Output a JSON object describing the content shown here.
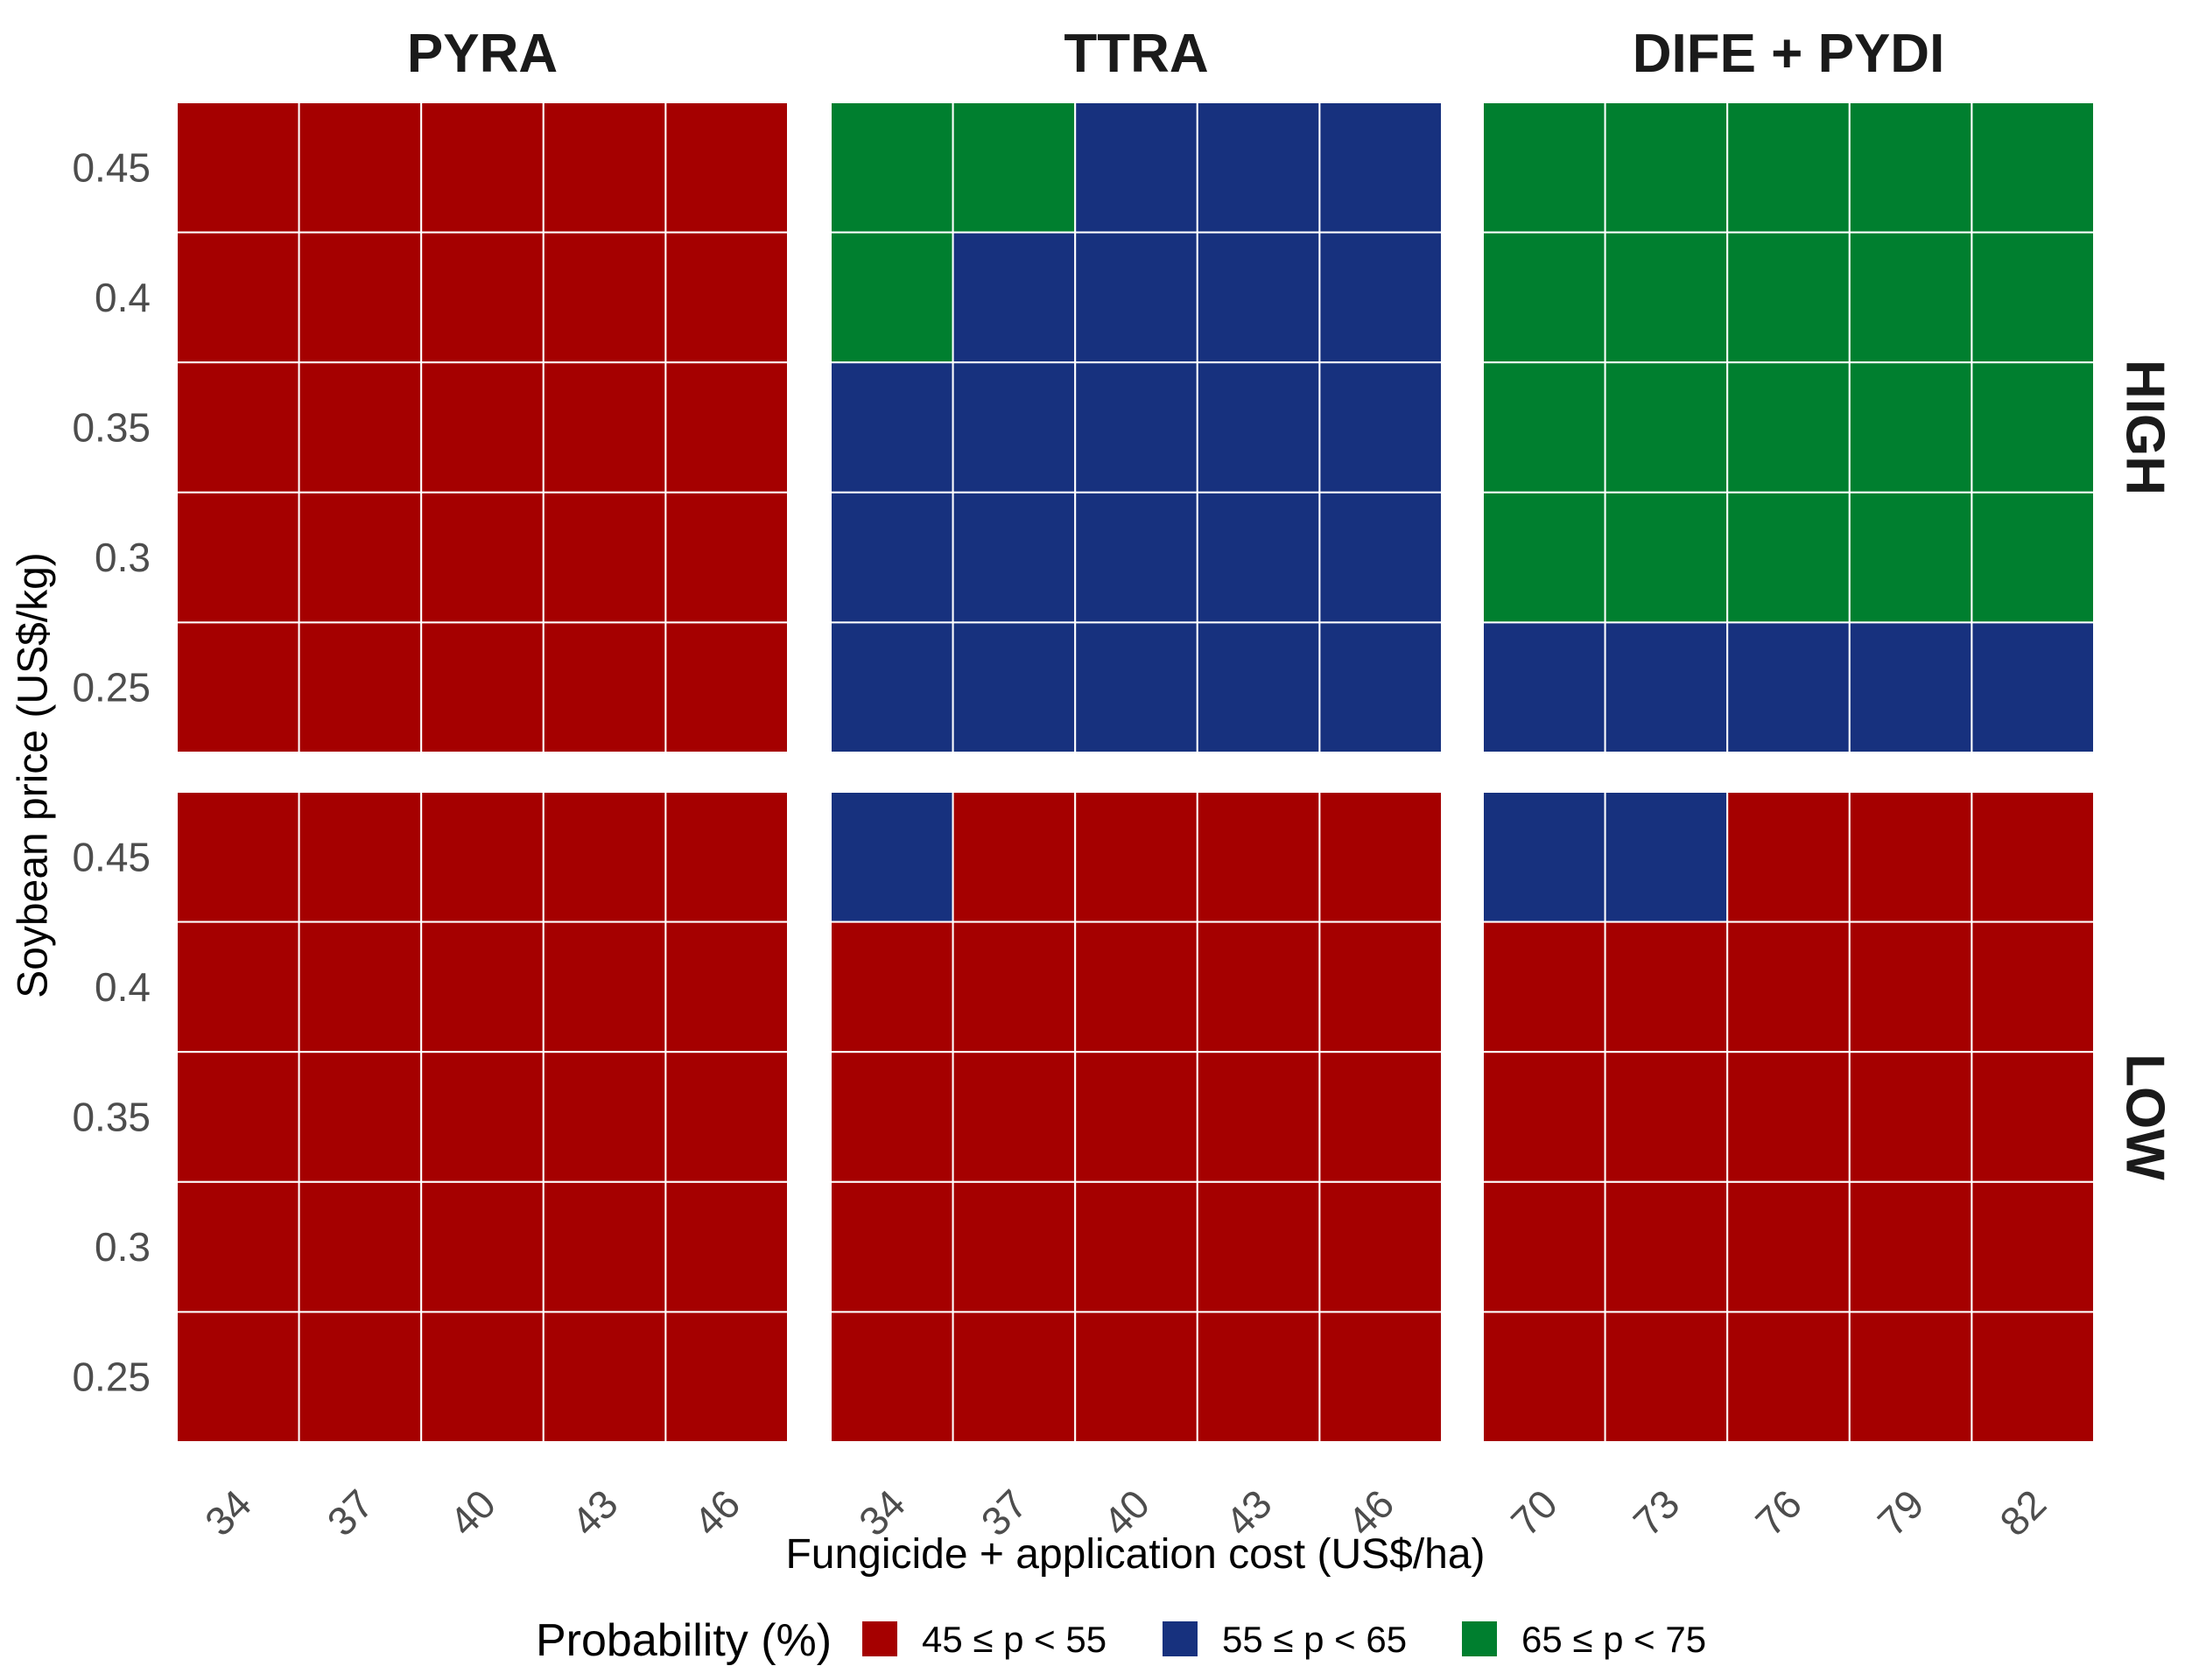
{
  "chart_data": {
    "type": "heatmap",
    "xlabel": "Fungicide + application cost (US$/ha)",
    "ylabel": "Soybean price (US$/kg)",
    "y_ticks": [
      "0.25",
      "0.3",
      "0.35",
      "0.4",
      "0.45"
    ],
    "columns": [
      {
        "title": "PYRA",
        "x_ticks": [
          "34",
          "37",
          "40",
          "43",
          "46"
        ]
      },
      {
        "title": "TTRA",
        "x_ticks": [
          "34",
          "37",
          "40",
          "43",
          "46"
        ]
      },
      {
        "title": "DIFE + PYDI",
        "x_ticks": [
          "70",
          "73",
          "76",
          "79",
          "82"
        ]
      }
    ],
    "rows": [
      "HIGH",
      "LOW"
    ],
    "legend": {
      "title": "Probability (%)",
      "placement": "bottom",
      "entries": [
        {
          "label": "45 ≤ p < 55",
          "color": "#a50000"
        },
        {
          "label": "55 ≤ p < 65",
          "color": "#17317e"
        },
        {
          "label": "65 ≤ p < 75",
          "color": "#007f2f"
        }
      ]
    },
    "cell_note": "grid[row][column] holds one class index per cell; rows of each panel run from price 0.45 (top) down to 0.25 (bottom); classes index into legend.entries",
    "grid": [
      [
        [
          [
            0,
            0,
            0,
            0,
            0
          ],
          [
            0,
            0,
            0,
            0,
            0
          ],
          [
            0,
            0,
            0,
            0,
            0
          ],
          [
            0,
            0,
            0,
            0,
            0
          ],
          [
            0,
            0,
            0,
            0,
            0
          ]
        ],
        [
          [
            2,
            2,
            1,
            1,
            1
          ],
          [
            2,
            1,
            1,
            1,
            1
          ],
          [
            1,
            1,
            1,
            1,
            1
          ],
          [
            1,
            1,
            1,
            1,
            1
          ],
          [
            1,
            1,
            1,
            1,
            1
          ]
        ],
        [
          [
            2,
            2,
            2,
            2,
            2
          ],
          [
            2,
            2,
            2,
            2,
            2
          ],
          [
            2,
            2,
            2,
            2,
            2
          ],
          [
            2,
            2,
            2,
            2,
            2
          ],
          [
            1,
            1,
            1,
            1,
            1
          ]
        ]
      ],
      [
        [
          [
            0,
            0,
            0,
            0,
            0
          ],
          [
            0,
            0,
            0,
            0,
            0
          ],
          [
            0,
            0,
            0,
            0,
            0
          ],
          [
            0,
            0,
            0,
            0,
            0
          ],
          [
            0,
            0,
            0,
            0,
            0
          ]
        ],
        [
          [
            1,
            0,
            0,
            0,
            0
          ],
          [
            0,
            0,
            0,
            0,
            0
          ],
          [
            0,
            0,
            0,
            0,
            0
          ],
          [
            0,
            0,
            0,
            0,
            0
          ],
          [
            0,
            0,
            0,
            0,
            0
          ]
        ],
        [
          [
            1,
            1,
            0,
            0,
            0
          ],
          [
            0,
            0,
            0,
            0,
            0
          ],
          [
            0,
            0,
            0,
            0,
            0
          ],
          [
            0,
            0,
            0,
            0,
            0
          ],
          [
            0,
            0,
            0,
            0,
            0
          ]
        ]
      ]
    ]
  }
}
